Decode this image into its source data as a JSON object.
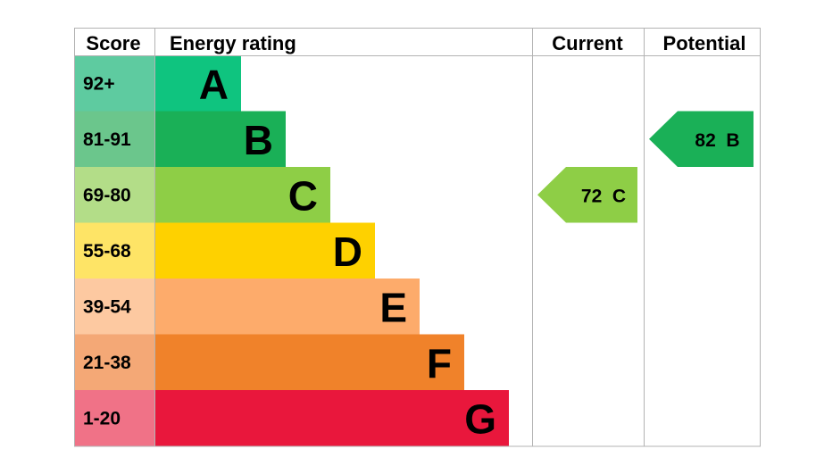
{
  "headers": {
    "score": "Score",
    "energy_rating": "Energy rating",
    "current": "Current",
    "potential": "Potential"
  },
  "chart_data": {
    "type": "bar",
    "title": "",
    "categories": [
      "A",
      "B",
      "C",
      "D",
      "E",
      "F",
      "G"
    ],
    "score_ranges": [
      "92+",
      "81-91",
      "69-80",
      "55-68",
      "39-54",
      "21-38",
      "1-20"
    ],
    "bar_colors": [
      "#0fc47f",
      "#1ab057",
      "#8ece46",
      "#fed100",
      "#fdab6b",
      "#f0822a",
      "#e9173c"
    ],
    "score_cell_colors": [
      "#5ecba0",
      "#6bc68c",
      "#b3dd88",
      "#fee466",
      "#fdc9a1",
      "#f4a876",
      "#f07287"
    ],
    "current": {
      "value": 72,
      "band": "C",
      "label": "72  C",
      "color": "#8ece46"
    },
    "potential": {
      "value": 82,
      "band": "B",
      "label": "82  B",
      "color": "#1ab057"
    }
  }
}
